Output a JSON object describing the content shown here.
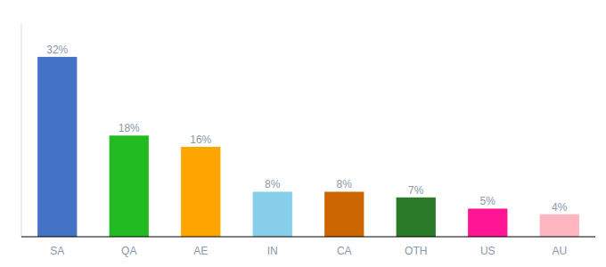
{
  "chart_data": {
    "type": "bar",
    "categories": [
      "SA",
      "QA",
      "AE",
      "IN",
      "CA",
      "OTH",
      "US",
      "AU"
    ],
    "values": [
      32,
      18,
      16,
      8,
      8,
      7,
      5,
      4
    ],
    "value_labels": [
      "32%",
      "18%",
      "16%",
      "8%",
      "8%",
      "7%",
      "5%",
      "4%"
    ],
    "colors": [
      "#4472C4",
      "#22BB22",
      "#FFA500",
      "#87CEEB",
      "#CC6600",
      "#2A7A2A",
      "#FF1493",
      "#FFB6C1"
    ],
    "ylim": [
      0,
      38
    ],
    "data_labels": true,
    "tick_labels": "x"
  }
}
